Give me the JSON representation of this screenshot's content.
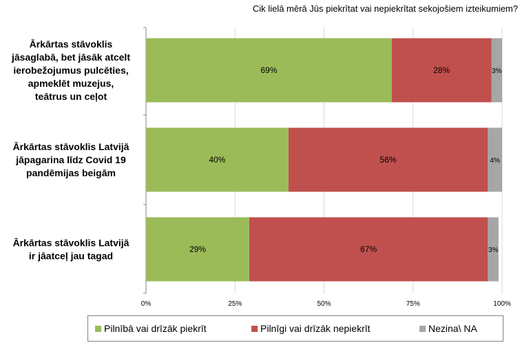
{
  "chart_data": {
    "type": "bar",
    "orientation": "horizontal",
    "stacked": true,
    "title": "Cik lielā mērā Jūs piekrītat vai nepiekrītat sekojošiem izteikumiem?",
    "categories": [
      "Ārkārtas stāvoklis jāsaglabā, bet jāsāk atcelt ierobežojumus pulcēties, apmeklēt muzejus, teātrus un ceļot",
      "Ārkārtas stāvoklis Latvijā jāpagarina līdz Covid 19 pandēmijas beigām",
      "Ārkārtas stāvoklis Latvijā ir jāatceļ jau tagad"
    ],
    "category_lines": [
      [
        "Ārkārtas stāvoklis",
        "jāsaglabā, bet jāsāk atcelt",
        "ierobežojumus pulcēties,",
        "apmeklēt muzejus,",
        "teātrus un ceļot"
      ],
      [
        "Ārkārtas stāvoklis Latvijā",
        "jāpagarina līdz Covid 19",
        "pandēmijas beigām"
      ],
      [
        "Ārkārtas stāvoklis Latvijā",
        "ir jāatceļ jau tagad"
      ]
    ],
    "series": [
      {
        "name": "Pilnībā vai drīzāk piekrīt",
        "values": [
          69,
          40,
          29
        ],
        "labels": [
          "69%",
          "40%",
          "29%"
        ],
        "color": "#9bbb59"
      },
      {
        "name": "Pilnīgi vai drīzāk nepiekrīt",
        "values": [
          28,
          56,
          67
        ],
        "labels": [
          "28%",
          "56%",
          "67%"
        ],
        "color": "#c0504d"
      },
      {
        "name": "Nezina\\ NA",
        "values": [
          3,
          4,
          3
        ],
        "labels": [
          "3%",
          "4%",
          "3%"
        ],
        "color": "#a6a6a6"
      }
    ],
    "xlim": [
      0,
      100
    ],
    "xticks": [
      "0%",
      "25%",
      "50%",
      "75%",
      "100%"
    ],
    "grid": true,
    "legend_position": "bottom"
  }
}
